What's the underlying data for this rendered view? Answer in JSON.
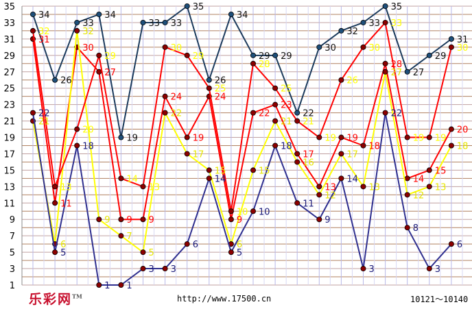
{
  "chart_data": {
    "type": "line",
    "yticks": [
      1,
      3,
      5,
      7,
      9,
      11,
      13,
      15,
      17,
      19,
      21,
      23,
      25,
      27,
      29,
      31,
      33,
      35
    ],
    "ylim": [
      1,
      35
    ],
    "x_count": 20,
    "grid": true,
    "series": [
      {
        "color": "#1b3a5c",
        "marker": "#1e4f7a",
        "label_color": "#111111",
        "values": [
          34,
          26,
          33,
          34,
          19,
          33,
          33,
          35,
          26,
          34,
          29,
          29,
          22,
          30,
          32,
          33,
          35,
          27,
          29,
          31
        ]
      },
      {
        "color": "#ff0000",
        "marker": "#8b0000",
        "label_color": "#ff0000",
        "values": [
          31,
          11,
          30,
          27,
          9,
          9,
          24,
          19,
          24,
          9,
          22,
          23,
          17,
          13,
          19,
          18,
          28,
          14,
          15,
          20
        ]
      },
      {
        "color": "#ffff00",
        "marker": "#8b0000",
        "label_color": "#e6e600",
        "values": [
          21,
          6,
          32,
          9,
          7,
          5,
          22,
          17,
          15,
          6,
          15,
          21,
          16,
          12,
          17,
          13,
          27,
          12,
          13,
          18
        ]
      },
      {
        "color": "#2f2f8f",
        "marker": "#8b0000",
        "label_color": "#1a1a7a",
        "values": [
          22,
          5,
          18,
          1,
          1,
          3,
          3,
          6,
          14,
          5,
          10,
          18,
          11,
          9,
          14,
          3,
          22,
          8,
          3,
          6
        ]
      },
      {
        "color": "#ff0000",
        "marker": "#8b0000",
        "label_color": "#ffff00",
        "values": [
          32,
          13,
          20,
          29,
          14,
          13,
          30,
          29,
          25,
          10,
          28,
          25,
          21,
          19,
          26,
          30,
          33,
          19,
          19,
          30
        ]
      }
    ]
  },
  "footer": {
    "url": "http://www.17500.cn",
    "range": "10121～10140",
    "logo": "乐彩网",
    "logo_mark": "TM"
  }
}
